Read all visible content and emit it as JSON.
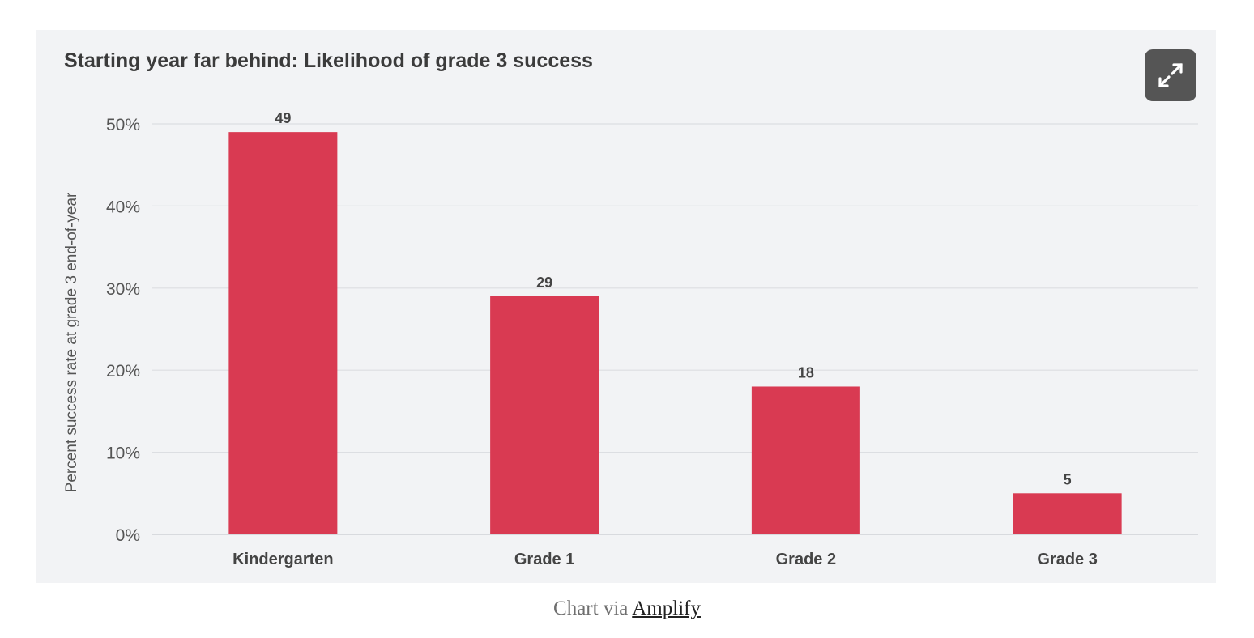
{
  "chart_data": {
    "type": "bar",
    "title": "Starting year far behind: Likelihood of grade 3 success",
    "xlabel": "",
    "ylabel": "Percent success rate at grade 3 end-of-year",
    "categories": [
      "Kindergarten",
      "Grade 1",
      "Grade 2",
      "Grade 3"
    ],
    "values": [
      49,
      29,
      18,
      5
    ],
    "data_labels": [
      "49",
      "29",
      "18",
      "5"
    ],
    "ylim": [
      0,
      50
    ],
    "yticks": [
      0,
      10,
      20,
      30,
      40,
      50
    ],
    "ytick_labels": [
      "0%",
      "10%",
      "20%",
      "30%",
      "40%",
      "50%"
    ],
    "grid": true,
    "legend": "none",
    "bar_color": "#d93a52"
  },
  "card": {
    "background": "#f2f3f5",
    "expand_icon": "expand-arrows-icon"
  },
  "caption": {
    "prefix": "Chart via",
    "link_text": "Amplify"
  }
}
